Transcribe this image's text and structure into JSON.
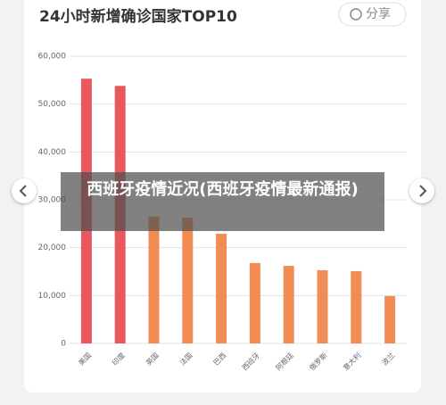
{
  "chart_data": {
    "type": "bar",
    "title": "24小时新增确诊国家TOP10",
    "categories": [
      "美国",
      "印度",
      "英国",
      "法国",
      "巴西",
      "西班牙",
      "阿根廷",
      "俄罗斯",
      "意大利",
      "波兰"
    ],
    "values": [
      55300,
      53800,
      26500,
      26300,
      22900,
      16800,
      16200,
      15300,
      15100,
      9900
    ],
    "colors": [
      "#e9585e",
      "#e9585e",
      "#f28c55",
      "#f28c55",
      "#f28c55",
      "#f28c55",
      "#f28c55",
      "#f28c55",
      "#f28c55",
      "#f28c55"
    ],
    "ylim": [
      0,
      60000
    ],
    "yticks": [
      0,
      {
        "value": 10000,
        "label": "10,000"
      },
      {
        "value": 20000,
        "label": "20,000"
      },
      {
        "value": 30000,
        "label": "30,000"
      },
      {
        "value": 40000,
        "label": "40,000"
      },
      {
        "value": 50000,
        "label": "50,000"
      },
      {
        "value": 60000,
        "label": "60,000"
      }
    ],
    "grid": true
  },
  "share_button": "分享",
  "overlay_caption": "西班牙疫情近况(西班牙疫情最新通报)"
}
